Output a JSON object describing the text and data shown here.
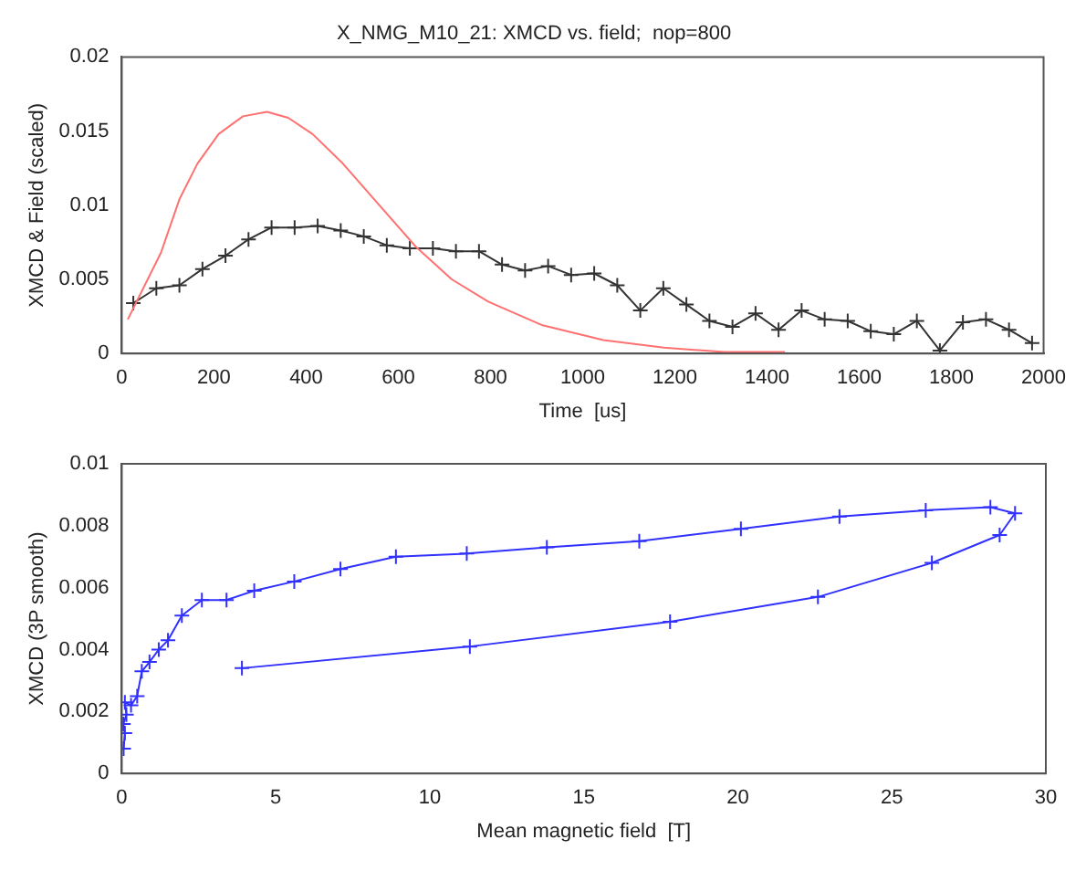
{
  "chart_data": [
    {
      "type": "line",
      "title": "X_NMG_M10_21: XMCD vs. field;  nop=800",
      "xlabel": "Time  [us]",
      "ylabel": "XMCD & Field (scaled)",
      "xlim": [
        0,
        2000
      ],
      "xticks": [
        0,
        200,
        400,
        600,
        800,
        1000,
        1200,
        1400,
        1600,
        1800,
        2000
      ],
      "ylim": [
        0,
        0.02
      ],
      "yticks": [
        0,
        0.005,
        0.01,
        0.015,
        0.02
      ],
      "grid": false,
      "legend": false,
      "series": [
        {
          "color": "#ff7070",
          "marker": "none",
          "x": [
            13,
            85,
            125,
            164,
            210,
            263,
            315,
            361,
            414,
            480,
            559,
            638,
            716,
            795,
            913,
            1045,
            1176,
            1307,
            1439
          ],
          "values": [
            0.0023,
            0.0068,
            0.0104,
            0.0128,
            0.0148,
            0.016,
            0.0163,
            0.0159,
            0.0148,
            0.0128,
            0.01,
            0.0072,
            0.005,
            0.0035,
            0.0019,
            0.0009,
            0.0004,
            0.0001,
            0.0001
          ]
        },
        {
          "color": "#333333",
          "marker": "cross",
          "x": [
            25,
            75,
            125,
            175,
            225,
            275,
            325,
            375,
            425,
            475,
            525,
            575,
            625,
            675,
            725,
            775,
            825,
            875,
            925,
            975,
            1025,
            1075,
            1125,
            1175,
            1225,
            1275,
            1325,
            1375,
            1425,
            1475,
            1525,
            1575,
            1625,
            1675,
            1725,
            1775,
            1825,
            1875,
            1925,
            1975
          ],
          "values": [
            0.0034,
            0.0044,
            0.0046,
            0.0057,
            0.0066,
            0.0077,
            0.0085,
            0.0085,
            0.0086,
            0.0083,
            0.0079,
            0.0073,
            0.0071,
            0.0071,
            0.0069,
            0.0069,
            0.006,
            0.0056,
            0.0059,
            0.0053,
            0.0054,
            0.0046,
            0.0029,
            0.0044,
            0.0033,
            0.0022,
            0.0018,
            0.0027,
            0.0016,
            0.0029,
            0.0023,
            0.0022,
            0.0015,
            0.0013,
            0.0022,
            0.0002,
            0.0021,
            0.0023,
            0.0016,
            0.0007
          ]
        }
      ]
    },
    {
      "type": "line",
      "xlabel": "Mean magnetic field  [T]",
      "ylabel": "XMCD (3P smooth)",
      "xlim": [
        0,
        30
      ],
      "xticks": [
        0,
        5,
        10,
        15,
        20,
        25,
        30
      ],
      "ylim": [
        0,
        0.01
      ],
      "yticks": [
        0,
        0.002,
        0.004,
        0.006,
        0.008,
        0.01
      ],
      "grid": false,
      "legend": false,
      "marker": "cross",
      "series": [
        {
          "color": "#3030ff",
          "x": [
            0.06,
            0.1,
            0.05,
            0.15,
            0.1,
            0.3,
            0.5,
            0.65,
            0.9,
            1.2,
            1.5,
            1.95,
            2.6,
            3.4,
            4.3,
            5.6,
            7.1,
            8.9,
            11.2,
            13.8,
            16.8,
            20.1,
            23.3,
            26.1,
            28.2,
            29.0,
            28.5,
            26.3,
            22.6,
            17.8,
            11.3,
            3.9
          ],
          "values": [
            0.0008,
            0.0013,
            0.0016,
            0.0019,
            0.0023,
            0.0022,
            0.0025,
            0.0033,
            0.0036,
            0.004,
            0.0043,
            0.0051,
            0.0056,
            0.0056,
            0.0059,
            0.0062,
            0.0066,
            0.007,
            0.0071,
            0.0073,
            0.0075,
            0.0079,
            0.0083,
            0.0085,
            0.0086,
            0.0084,
            0.0077,
            0.0068,
            0.0057,
            0.0049,
            0.0041,
            0.0034
          ]
        }
      ]
    }
  ]
}
